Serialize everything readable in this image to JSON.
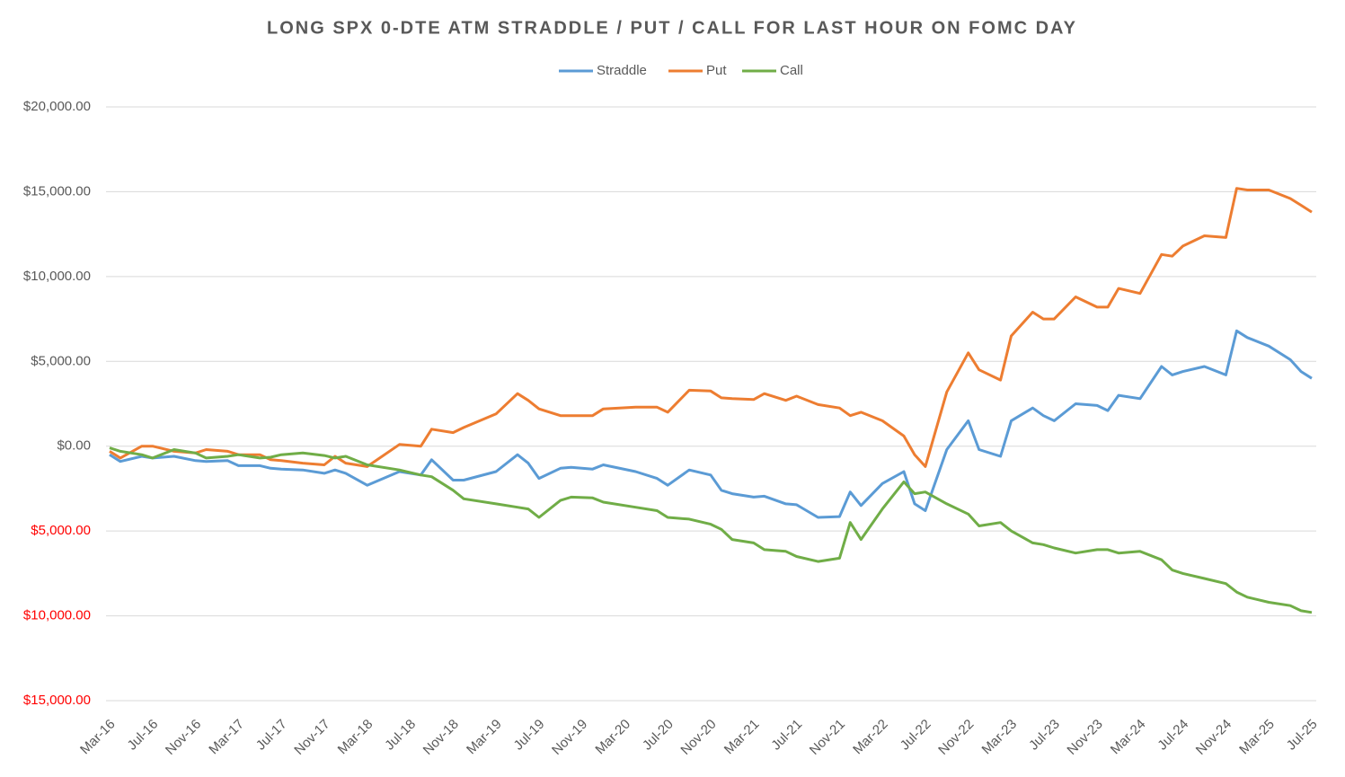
{
  "chart_data": {
    "type": "line",
    "title": "LONG SPX 0-DTE ATM STRADDLE / PUT / CALL FOR LAST HOUR ON FOMC DAY",
    "x": [
      "Mar-16",
      "Apr-16",
      "Jun-16",
      "Jul-16",
      "Sep-16",
      "Nov-16",
      "Dec-16",
      "Feb-17",
      "Mar-17",
      "May-17",
      "Jun-17",
      "Jul-17",
      "Sep-17",
      "Nov-17",
      "Dec-17",
      "Jan-18",
      "Mar-18",
      "Jun-18",
      "Aug-18",
      "Sep-18",
      "Nov-18",
      "Dec-18",
      "Mar-19",
      "May-19",
      "Jun-19",
      "Jul-19",
      "Sep-19",
      "Oct-19",
      "Dec-19",
      "Jan-20",
      "Apr-20",
      "Jun-20",
      "Jul-20",
      "Sep-20",
      "Nov-20",
      "Dec-20",
      "Jan-21",
      "Mar-21",
      "Apr-21",
      "Jun-21",
      "Jul-21",
      "Sep-21",
      "Nov-21",
      "Dec-21",
      "Jan-22",
      "Mar-22",
      "May-22",
      "Jun-22",
      "Jul-22",
      "Sep-22",
      "Nov-22",
      "Dec-22",
      "Feb-23",
      "Mar-23",
      "May-23",
      "Jun-23",
      "Jul-23",
      "Sep-23",
      "Nov-23",
      "Dec-23",
      "Jan-24",
      "Mar-24",
      "May-24",
      "Jun-24",
      "Jul-24",
      "Sep-24",
      "Nov-24",
      "Dec-24",
      "Jan-25",
      "Mar-25",
      "May-25",
      "Jun-25",
      "Jul-25"
    ],
    "series": [
      {
        "name": "Straddle",
        "color": "#5b9bd5",
        "values": [
          -500,
          -900,
          -600,
          -700,
          -600,
          -850,
          -900,
          -850,
          -1150,
          -1150,
          -1300,
          -1350,
          -1400,
          -1600,
          -1400,
          -1600,
          -2300,
          -1500,
          -1700,
          -800,
          -2000,
          -2000,
          -1500,
          -500,
          -1000,
          -1900,
          -1300,
          -1250,
          -1350,
          -1100,
          -1500,
          -1900,
          -2300,
          -1400,
          -1700,
          -2600,
          -2800,
          -3000,
          -2950,
          -3400,
          -3450,
          -4200,
          -4150,
          -2700,
          -3500,
          -2200,
          -1500,
          -3400,
          -3800,
          -200,
          1500,
          -200,
          -600,
          1500,
          2250,
          1800,
          1500,
          2500,
          2400,
          2100,
          3000,
          2800,
          4700,
          4200,
          4400,
          4700,
          4200,
          6800,
          6400,
          5900,
          5100,
          4400,
          4000
        ]
      },
      {
        "name": "Put",
        "color": "#ed7d31",
        "values": [
          -300,
          -700,
          0,
          0,
          -300,
          -400,
          -200,
          -300,
          -500,
          -500,
          -800,
          -850,
          -1000,
          -1100,
          -600,
          -1000,
          -1200,
          100,
          0,
          1000,
          800,
          1100,
          1900,
          3100,
          2700,
          2200,
          1800,
          1800,
          1800,
          2200,
          2300,
          2300,
          2000,
          3300,
          3250,
          2850,
          2800,
          2750,
          3100,
          2700,
          2950,
          2450,
          2250,
          1800,
          2000,
          1500,
          600,
          -500,
          -1200,
          3200,
          5500,
          4500,
          3900,
          6500,
          7900,
          7500,
          7500,
          8800,
          8200,
          8200,
          9300,
          9000,
          11300,
          11200,
          11800,
          12400,
          12300,
          15200,
          15100,
          15100,
          14600,
          14200,
          13800
        ]
      },
      {
        "name": "Call",
        "color": "#70ad47",
        "values": [
          -100,
          -300,
          -500,
          -700,
          -200,
          -400,
          -700,
          -600,
          -500,
          -700,
          -650,
          -500,
          -400,
          -550,
          -700,
          -600,
          -1100,
          -1400,
          -1700,
          -1800,
          -2600,
          -3100,
          -3400,
          -3600,
          -3700,
          -4200,
          -3200,
          -3000,
          -3050,
          -3300,
          -3600,
          -3800,
          -4200,
          -4300,
          -4600,
          -4900,
          -5500,
          -5700,
          -6100,
          -6200,
          -6500,
          -6800,
          -6600,
          -4500,
          -5500,
          -3700,
          -2100,
          -2800,
          -2700,
          -3400,
          -4000,
          -4700,
          -4500,
          -5000,
          -5700,
          -5800,
          -6000,
          -6300,
          -6100,
          -6100,
          -6300,
          -6200,
          -6700,
          -7300,
          -7500,
          -7800,
          -8100,
          -8600,
          -8900,
          -9200,
          -9400,
          -9700,
          -9800
        ]
      }
    ],
    "xlim": [
      "Mar-16",
      "Jul-25"
    ],
    "xticks": [
      "Mar-16",
      "Jul-16",
      "Nov-16",
      "Mar-17",
      "Jul-17",
      "Nov-17",
      "Mar-18",
      "Jul-18",
      "Nov-18",
      "Mar-19",
      "Jul-19",
      "Nov-19",
      "Mar-20",
      "Jul-20",
      "Nov-20",
      "Mar-21",
      "Jul-21",
      "Nov-21",
      "Mar-22",
      "Jul-22",
      "Nov-22",
      "Mar-23",
      "Jul-23",
      "Nov-23",
      "Mar-24",
      "Jul-24",
      "Nov-24",
      "Mar-25",
      "Jul-25"
    ],
    "ylim": [
      -15000,
      20000
    ],
    "yticks": [
      {
        "value": -15000,
        "label": "$15,000.00"
      },
      {
        "value": -10000,
        "label": "$10,000.00"
      },
      {
        "value": -5000,
        "label": "$5,000.00"
      },
      {
        "value": 0,
        "label": "$0.00"
      },
      {
        "value": 5000,
        "label": "$5,000.00"
      },
      {
        "value": 10000,
        "label": "$10,000.00"
      },
      {
        "value": 15000,
        "label": "$15,000.00"
      },
      {
        "value": 20000,
        "label": "$20,000.00"
      }
    ],
    "negative_label_color": "#ff0000",
    "grid": true,
    "legend": "top"
  }
}
